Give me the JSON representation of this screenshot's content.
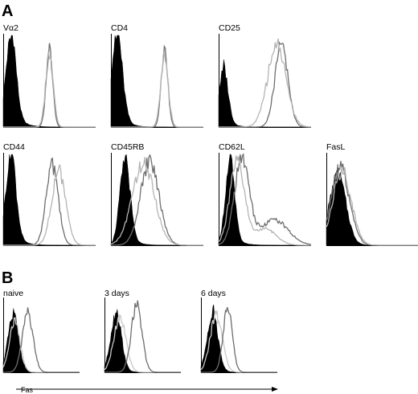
{
  "panels": [
    {
      "letter": "A"
    },
    {
      "letter": "B"
    }
  ],
  "chart_data": [
    {
      "type": "histogram",
      "panel": "A",
      "series_colors": {
        "isotype_control": "#000000",
        "series_dark": "#6e6e6e",
        "series_light": "#b4b4b4"
      },
      "histograms": [
        {
          "label": "Vα2",
          "filled": {
            "center": 0.08,
            "width": 0.055,
            "height": 0.95,
            "tail": 0.25
          },
          "lines": [
            {
              "shade": "dark",
              "center": 0.5,
              "width": 0.035,
              "height": 0.85
            },
            {
              "shade": "light",
              "center": 0.5,
              "width": 0.04,
              "height": 0.8
            }
          ]
        },
        {
          "label": "CD4",
          "filled": {
            "center": 0.06,
            "width": 0.06,
            "height": 0.95,
            "tail": 0.2
          },
          "lines": [
            {
              "shade": "dark",
              "center": 0.58,
              "width": 0.035,
              "height": 0.85
            },
            {
              "shade": "light",
              "center": 0.58,
              "width": 0.04,
              "height": 0.8
            }
          ]
        },
        {
          "label": "CD25",
          "filled": {
            "center": 0.05,
            "width": 0.05,
            "height": 0.6,
            "tail": 0.15
          },
          "lines": [
            {
              "shade": "dark",
              "center": 0.68,
              "width": 0.07,
              "height": 0.9
            },
            {
              "shade": "light",
              "center": 0.63,
              "width": 0.1,
              "height": 0.9
            }
          ]
        },
        {
          "label": "CD44",
          "filled": {
            "center": 0.08,
            "width": 0.055,
            "height": 0.95,
            "tail": 0.2
          },
          "lines": [
            {
              "shade": "dark",
              "center": 0.53,
              "width": 0.065,
              "height": 0.88
            },
            {
              "shade": "light",
              "center": 0.6,
              "width": 0.075,
              "height": 0.82
            }
          ]
        },
        {
          "label": "CD45RB",
          "filled": {
            "center": 0.15,
            "width": 0.055,
            "height": 0.9,
            "tail": 0.15
          },
          "lines": [
            {
              "shade": "dark",
              "center": 0.42,
              "width": 0.1,
              "height": 0.92
            },
            {
              "shade": "light",
              "center": 0.35,
              "width": 0.12,
              "height": 0.9
            }
          ]
        },
        {
          "label": "CD62L",
          "filled": {
            "center": 0.12,
            "width": 0.05,
            "height": 0.88,
            "tail": 0.15
          },
          "lines": [
            {
              "shade": "dark",
              "center": 0.25,
              "width": 0.08,
              "height": 0.95,
              "shoulder": {
                "center": 0.6,
                "width": 0.15,
                "height": 0.28
              }
            },
            {
              "shade": "light",
              "center": 0.2,
              "width": 0.08,
              "height": 0.9,
              "shoulder": {
                "center": 0.5,
                "width": 0.12,
                "height": 0.18
              }
            }
          ]
        },
        {
          "label": "FasL",
          "filled": {
            "center": 0.12,
            "width": 0.09,
            "height": 0.75,
            "tail": 0.1
          },
          "lines": [
            {
              "shade": "dark",
              "center": 0.15,
              "width": 0.1,
              "height": 0.85
            },
            {
              "shade": "light",
              "center": 0.17,
              "width": 0.1,
              "height": 0.82
            }
          ]
        }
      ]
    },
    {
      "type": "histogram",
      "panel": "B",
      "x_axis_label": "Fas",
      "series_colors": {
        "isotype_control": "#000000",
        "series_dark": "#6e6e6e",
        "series_light": "#c8c8c8"
      },
      "histograms": [
        {
          "label": "naive",
          "filled": {
            "center": 0.13,
            "width": 0.07,
            "height": 0.75,
            "tail": 0.1
          },
          "lines": [
            {
              "shade": "light",
              "center": 0.15,
              "width": 0.07,
              "height": 0.7
            },
            {
              "shade": "dark",
              "center": 0.32,
              "width": 0.07,
              "height": 0.82
            }
          ]
        },
        {
          "label": "3 days",
          "filled": {
            "center": 0.15,
            "width": 0.07,
            "height": 0.8,
            "tail": 0.1
          },
          "lines": [
            {
              "shade": "light",
              "center": 0.2,
              "width": 0.08,
              "height": 0.75
            },
            {
              "shade": "dark",
              "center": 0.42,
              "width": 0.07,
              "height": 0.92
            }
          ]
        },
        {
          "label": "6 days",
          "filled": {
            "center": 0.15,
            "width": 0.07,
            "height": 0.8,
            "tail": 0.1
          },
          "lines": [
            {
              "shade": "light",
              "center": 0.2,
              "width": 0.08,
              "height": 0.78
            },
            {
              "shade": "dark",
              "center": 0.35,
              "width": 0.06,
              "height": 0.88
            }
          ]
        }
      ]
    }
  ]
}
